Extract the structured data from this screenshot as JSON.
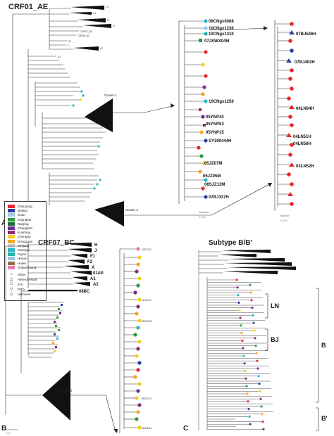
{
  "panel_a": {
    "title": "CRF01_AE",
    "panel_letter": "A",
    "scale_main": "0.01",
    "scale_sub": "0.002",
    "cluster1": "Cluster 1",
    "cluster2": "Cluster 2",
    "outgroups": [
      "F2",
      "F1",
      "D",
      "H",
      "CRF07_BC",
      "CRF08_BC",
      "B",
      "C",
      "A2",
      "A1"
    ],
    "zoom1_tips": [
      "09CNgx0068",
      "10CNgx1236",
      "10CNgx1310",
      "07JSWX045I",
      "10CNgx1256",
      "05YNP42",
      "05YNP53",
      "05YNP15",
      "SY300444H",
      "05JZ07M",
      "05JZ05M",
      "08SJZ12M",
      "07BJ337H"
    ],
    "zoom2_tips": [
      "07BJ546H",
      "07BJ402H",
      "04LN64H",
      "04LN51H",
      "04LN56H",
      "03LN52H"
    ],
    "legend": {
      "cities": [
        "Shenyang",
        "Beijing",
        "Jinan",
        "Shanghai",
        "Nanjing",
        "Changsha",
        "Kunming",
        "Chengdu",
        "Dongguan",
        "Xinjiang",
        "Guangxi",
        "Fujian",
        "Henan",
        "Hubei",
        "Shijiazhuang"
      ],
      "city_colors": [
        "#e8262b",
        "#2d3e9a",
        "#a8c8e8",
        "#2a9a3c",
        "#1f6b3a",
        "#6a2c91",
        "#8b2a7a",
        "#f0d020",
        "#f5a623",
        "#d0d0d0",
        "#2ab5c8",
        "#1fb5a5",
        "#96c8e8",
        "#9a6b4b",
        "#e87aa8"
      ],
      "risks": [
        "MSM",
        "Heterosexual",
        "IDU",
        "PBO",
        "unknown"
      ]
    }
  },
  "panel_b": {
    "title": "CRF07_BC",
    "panel_letter": "B",
    "scale": "0.01",
    "cluster3": "Cluster 3",
    "tips": [
      "H",
      "J",
      "F1",
      "F2",
      "A",
      "01AE",
      "A1",
      "A2",
      "08BC"
    ],
    "top_tip": "10GZ121",
    "mid_tip": "11GZ221",
    "mid_tip2": "05SJZ111",
    "low_tip": "06GZ213",
    "bottom_tip": "05JZ1114"
  },
  "panel_c": {
    "title": "Subtype B/B'",
    "panel_letter": "C",
    "groups": [
      "LN",
      "BJ",
      "B",
      "B'"
    ]
  }
}
